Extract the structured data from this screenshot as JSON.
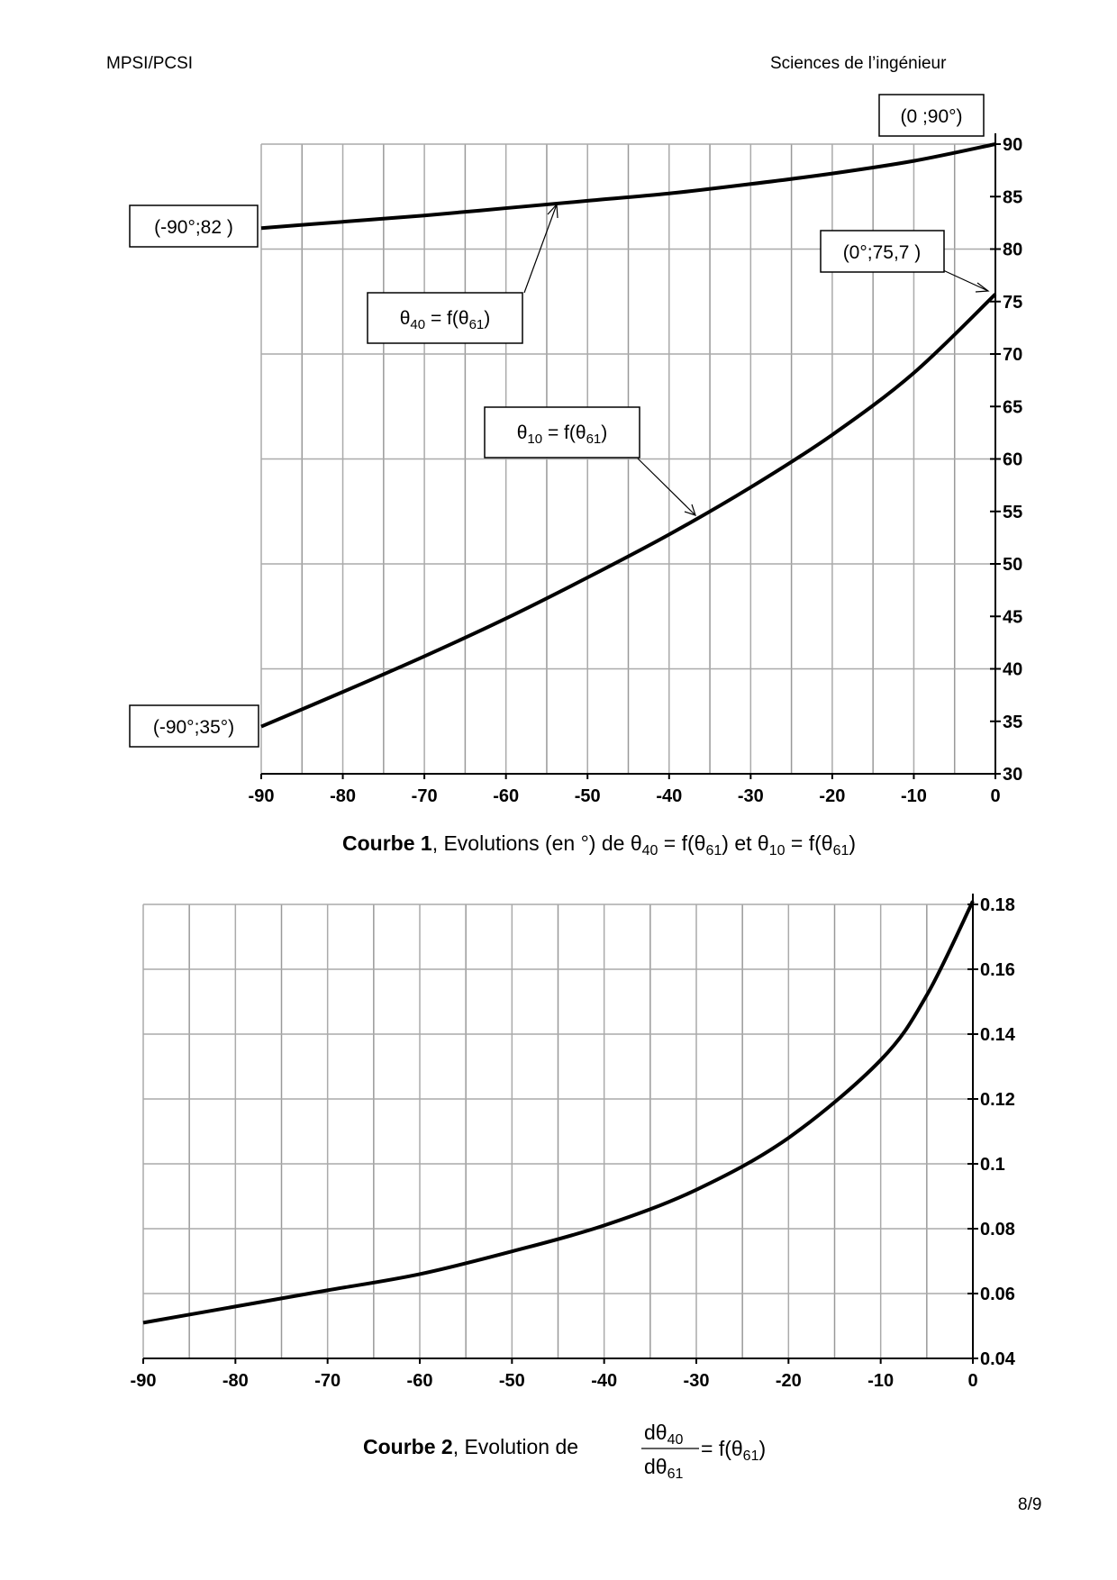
{
  "header": {
    "left": "MPSI/PCSI",
    "right": "Sciences de l’ingénieur"
  },
  "page_number": "8/9",
  "chart_data": [
    {
      "type": "line",
      "x_ticks": [
        "-90",
        "-80",
        "-70",
        "-60",
        "-50",
        "-40",
        "-30",
        "-20",
        "-10",
        "0"
      ],
      "y_ticks": [
        "30",
        "35",
        "40",
        "45",
        "50",
        "55",
        "60",
        "65",
        "70",
        "75",
        "80",
        "85",
        "90"
      ],
      "xlim": [
        -90,
        0
      ],
      "ylim": [
        30,
        90
      ],
      "grid": true,
      "x": [
        -90,
        -80,
        -70,
        -60,
        -50,
        -40,
        -30,
        -20,
        -10,
        0
      ],
      "series": [
        {
          "name": "θ40 = f(θ61)",
          "values": [
            82,
            82.6,
            83.2,
            83.9,
            84.6,
            85.3,
            86.2,
            87.2,
            88.4,
            90
          ]
        },
        {
          "name": "θ10 = f(θ61)",
          "values": [
            34.5,
            37.8,
            41.2,
            44.8,
            48.7,
            52.8,
            57.3,
            62.3,
            68.2,
            75.7
          ]
        }
      ],
      "annotations": {
        "a0_90": "(0 ;90°)",
        "a90_82": "(-90°;82 )",
        "a0_757": "(0°;75,7 )",
        "a90_35": "(-90°;35°)",
        "theta40": {
          "base": "θ",
          "sub": "40",
          "mid": " = f(θ",
          "sub2": "61",
          "end": ")"
        },
        "theta10": {
          "base": "θ",
          "sub": "10",
          "mid": " = f(θ",
          "sub2": "61",
          "end": ")"
        }
      },
      "caption": {
        "bold": "Courbe 1",
        "text": ", Evolutions (en °) de ",
        "t1": "θ",
        "s1": "40",
        "t2": " = f(θ",
        "s2": "61",
        "t3": ")  et  θ",
        "s3": "10",
        "t4": " = f(θ",
        "s4": "61",
        "t5": ")"
      }
    },
    {
      "type": "line",
      "x_ticks": [
        "-90",
        "-80",
        "-70",
        "-60",
        "-50",
        "-40",
        "-30",
        "-20",
        "-10",
        "0"
      ],
      "y_ticks": [
        "0.04",
        "0.06",
        "0.08",
        "0.1",
        "0.12",
        "0.14",
        "0.16",
        "0.18"
      ],
      "xlim": [
        -90,
        0
      ],
      "ylim": [
        0.04,
        0.18
      ],
      "grid": true,
      "x": [
        -90,
        -80,
        -70,
        -60,
        -50,
        -40,
        -30,
        -20,
        -10,
        -5,
        0
      ],
      "series": [
        {
          "values": [
            0.051,
            0.056,
            0.061,
            0.066,
            0.073,
            0.081,
            0.092,
            0.108,
            0.132,
            0.152,
            0.181
          ]
        }
      ],
      "caption": {
        "bold": "Courbe 2",
        "text": ", Evolution de ",
        "num": "dθ",
        "num_sub": "40",
        "den": "dθ",
        "den_sub": "61",
        "rhs": " = f(θ",
        "rhs_sub": "61",
        "rhs_end": ")"
      }
    }
  ]
}
